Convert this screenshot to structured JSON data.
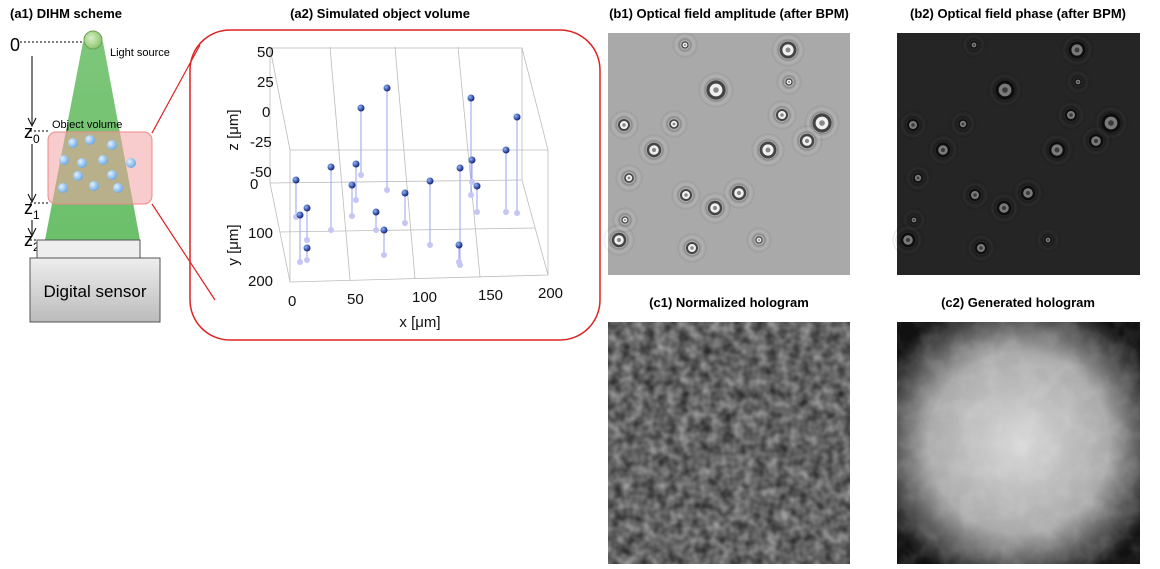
{
  "panels": {
    "a1": {
      "title": "(a1) DIHM scheme",
      "origin": "0",
      "z0": {
        "base": "z",
        "sub": "0"
      },
      "z1": {
        "base": "z",
        "sub": "1"
      },
      "z2": {
        "base": "z",
        "sub": "2"
      },
      "light_source": "Light source",
      "object_volume": "Object volume",
      "sensor": "Digital sensor"
    },
    "a2": {
      "title": "(a2) Simulated object volume",
      "z_label": "z [μm]",
      "y_label": "y [μm]",
      "x_label": "x [μm]",
      "z_ticks": [
        "50",
        "25",
        "0",
        "-25",
        "-50"
      ],
      "y_ticks": [
        "0",
        "100",
        "200"
      ],
      "x_ticks": [
        "0",
        "50",
        "100",
        "150",
        "200"
      ]
    },
    "b1": {
      "title": "(b1) Optical field amplitude (after BPM)"
    },
    "b2": {
      "title": "(b2) Optical field phase (after BPM)"
    },
    "c1": {
      "title": "(c1) Normalized hologram"
    },
    "c2": {
      "title": "(c2) Generated hologram"
    }
  }
}
